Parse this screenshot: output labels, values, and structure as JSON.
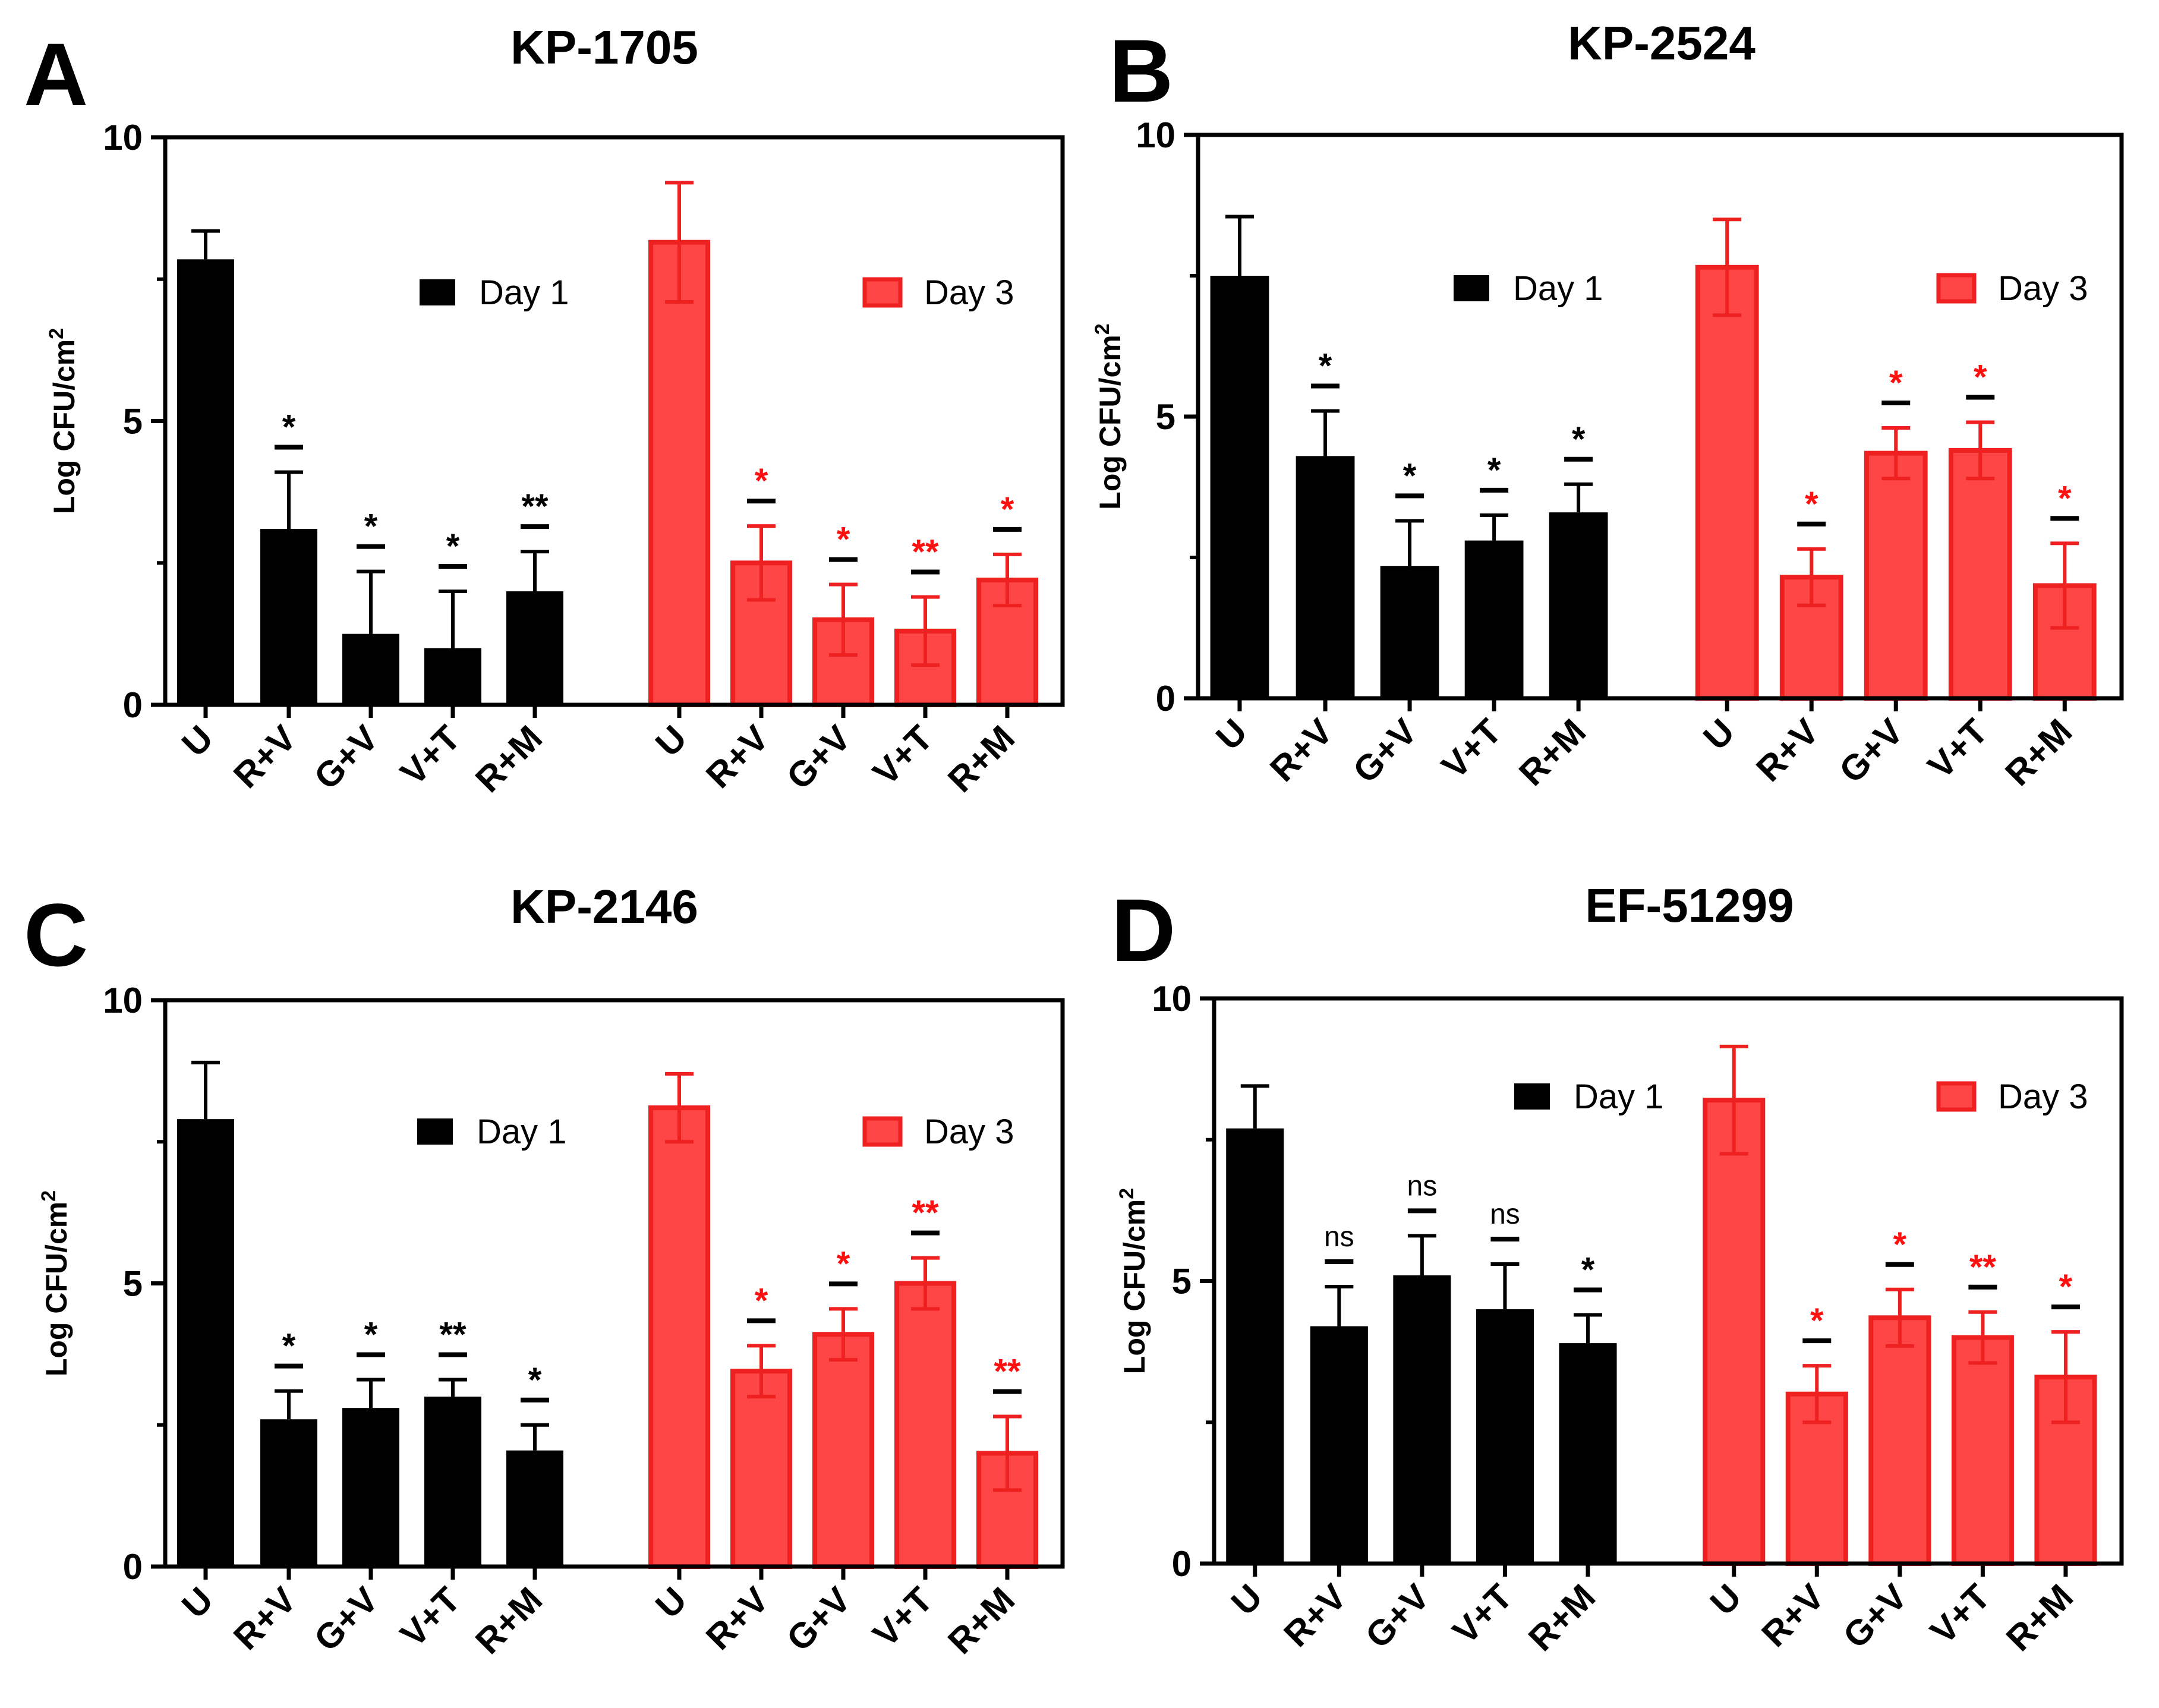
{
  "colors": {
    "day1": "#000000",
    "day3_fill": "#ff4646",
    "day3_stroke": "#ee2020",
    "sig_day1": "#000000",
    "sig_day3": "#ff1010"
  },
  "chart_data": [
    {
      "type": "bar",
      "panel": "A",
      "title": "KP-1705",
      "ylabel": "Log CFU/cm",
      "ylabel_sup": "2",
      "ylim": [
        0,
        10
      ],
      "yticks": [
        "0",
        "5",
        "10"
      ],
      "legend": [
        "Day 1",
        "Day 3"
      ],
      "series": [
        {
          "name": "Day 1",
          "categories": [
            "U",
            "R+V",
            "G+V",
            "V+T",
            "R+M"
          ],
          "values": [
            7.85,
            3.1,
            1.25,
            1.0,
            2.0
          ],
          "errors": [
            0.5,
            1.0,
            1.1,
            1.0,
            0.7
          ],
          "significance": [
            "",
            "*",
            "*",
            "*",
            "**"
          ]
        },
        {
          "name": "Day 3",
          "categories": [
            "U",
            "R+V",
            "G+V",
            "V+T",
            "R+M"
          ],
          "values": [
            8.15,
            2.5,
            1.5,
            1.3,
            2.2
          ],
          "errors": [
            1.05,
            0.65,
            0.62,
            0.6,
            0.45
          ],
          "significance": [
            "",
            "*",
            "*",
            "**",
            "*"
          ]
        }
      ]
    },
    {
      "type": "bar",
      "panel": "B",
      "title": "KP-2524",
      "ylabel": "Log CFU/cm",
      "ylabel_sup": "2",
      "ylim": [
        0,
        10
      ],
      "yticks": [
        "0",
        "5",
        "10"
      ],
      "legend": [
        "Day 1",
        "Day 3"
      ],
      "series": [
        {
          "name": "Day 1",
          "categories": [
            "U",
            "R+V",
            "G+V",
            "V+T",
            "R+M"
          ],
          "values": [
            7.5,
            4.3,
            2.35,
            2.8,
            3.3
          ],
          "errors": [
            1.05,
            0.8,
            0.8,
            0.45,
            0.5
          ],
          "significance": [
            "",
            "*",
            "*",
            "*",
            "*"
          ]
        },
        {
          "name": "Day 3",
          "categories": [
            "U",
            "R+V",
            "G+V",
            "V+T",
            "R+M"
          ],
          "values": [
            7.65,
            2.15,
            4.35,
            4.4,
            2.0
          ],
          "errors": [
            0.85,
            0.5,
            0.45,
            0.5,
            0.75
          ],
          "significance": [
            "",
            "*",
            "*",
            "*",
            "*"
          ]
        }
      ]
    },
    {
      "type": "bar",
      "panel": "C",
      "title": "KP-2146",
      "ylabel": "Log CFU/cm",
      "ylabel_sup": "2",
      "ylim": [
        0,
        10
      ],
      "yticks": [
        "0",
        "5",
        "10"
      ],
      "legend": [
        "Day 1",
        "Day 3"
      ],
      "series": [
        {
          "name": "Day 1",
          "categories": [
            "U",
            "R+V",
            "G+V",
            "V+T",
            "R+M"
          ],
          "values": [
            7.9,
            2.6,
            2.8,
            3.0,
            2.05
          ],
          "errors": [
            1.0,
            0.5,
            0.5,
            0.3,
            0.45
          ],
          "significance": [
            "",
            "*",
            "*",
            "**",
            "*"
          ]
        },
        {
          "name": "Day 3",
          "categories": [
            "U",
            "R+V",
            "G+V",
            "V+T",
            "R+M"
          ],
          "values": [
            8.1,
            3.45,
            4.1,
            5.0,
            2.0
          ],
          "errors": [
            0.6,
            0.45,
            0.45,
            0.45,
            0.65
          ],
          "significance": [
            "",
            "*",
            "*",
            "**",
            "**"
          ]
        }
      ]
    },
    {
      "type": "bar",
      "panel": "D",
      "title": "EF-51299",
      "ylabel": "Log CFU/cm",
      "ylabel_sup": "2",
      "ylim": [
        0,
        10
      ],
      "yticks": [
        "0",
        "5",
        "10"
      ],
      "legend": [
        "Day 1",
        "Day 3"
      ],
      "series": [
        {
          "name": "Day 1",
          "categories": [
            "U",
            "R+V",
            "G+V",
            "V+T",
            "R+M"
          ],
          "values": [
            7.7,
            4.2,
            5.1,
            4.5,
            3.9
          ],
          "errors": [
            0.75,
            0.7,
            0.7,
            0.8,
            0.5
          ],
          "significance": [
            "",
            "ns",
            "ns",
            "ns",
            "*"
          ]
        },
        {
          "name": "Day 3",
          "categories": [
            "U",
            "R+V",
            "G+V",
            "V+T",
            "R+M"
          ],
          "values": [
            8.2,
            3.0,
            4.35,
            4.0,
            3.3
          ],
          "errors": [
            0.95,
            0.5,
            0.5,
            0.45,
            0.8
          ],
          "significance": [
            "",
            "*",
            "*",
            "**",
            "*"
          ]
        }
      ]
    }
  ]
}
